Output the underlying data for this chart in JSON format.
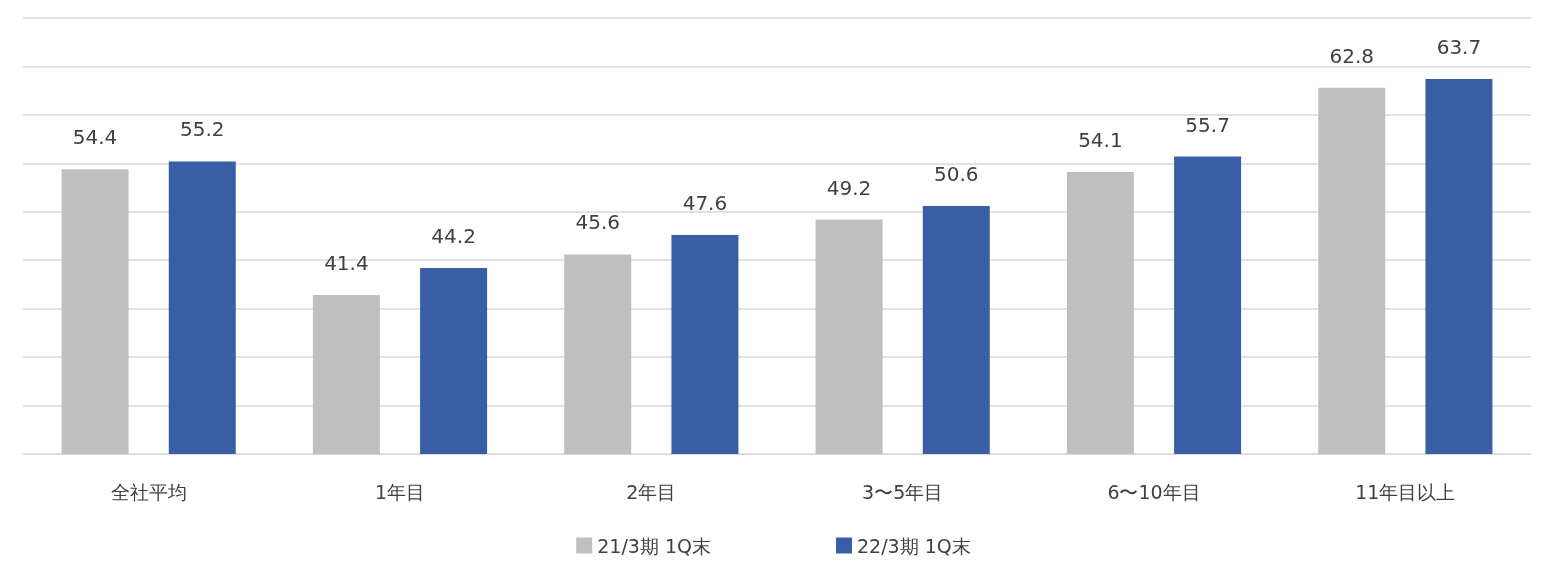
{
  "chart_data": {
    "type": "bar",
    "categories": [
      "全社平均",
      "1年目",
      "2年目",
      "3〜5年目",
      "6〜10年目",
      "11年目以上"
    ],
    "series": [
      {
        "name": "21/3期 1Q末",
        "color": "#bfbfbf",
        "values": [
          54.4,
          41.4,
          45.6,
          49.2,
          54.1,
          62.8
        ]
      },
      {
        "name": "22/3期 1Q末",
        "color": "#3a5ea5",
        "values": [
          55.2,
          44.2,
          47.6,
          50.6,
          55.7,
          63.7
        ]
      }
    ],
    "ylim": [
      25,
      70
    ],
    "yticks": [
      {
        "value": 25,
        "label": null
      },
      {
        "value": 30,
        "label": null
      },
      {
        "value": 35,
        "label": null
      },
      {
        "value": 40,
        "label": null
      },
      {
        "value": 45,
        "label": null
      },
      {
        "value": 50,
        "label": null
      },
      {
        "value": 55,
        "label": null
      },
      {
        "value": 60,
        "label": null
      },
      {
        "value": 65,
        "label": null
      },
      {
        "value": 70,
        "label": null
      }
    ],
    "tick_labels": "x",
    "grid": "y",
    "legend": "bottom",
    "data_labels": true
  }
}
